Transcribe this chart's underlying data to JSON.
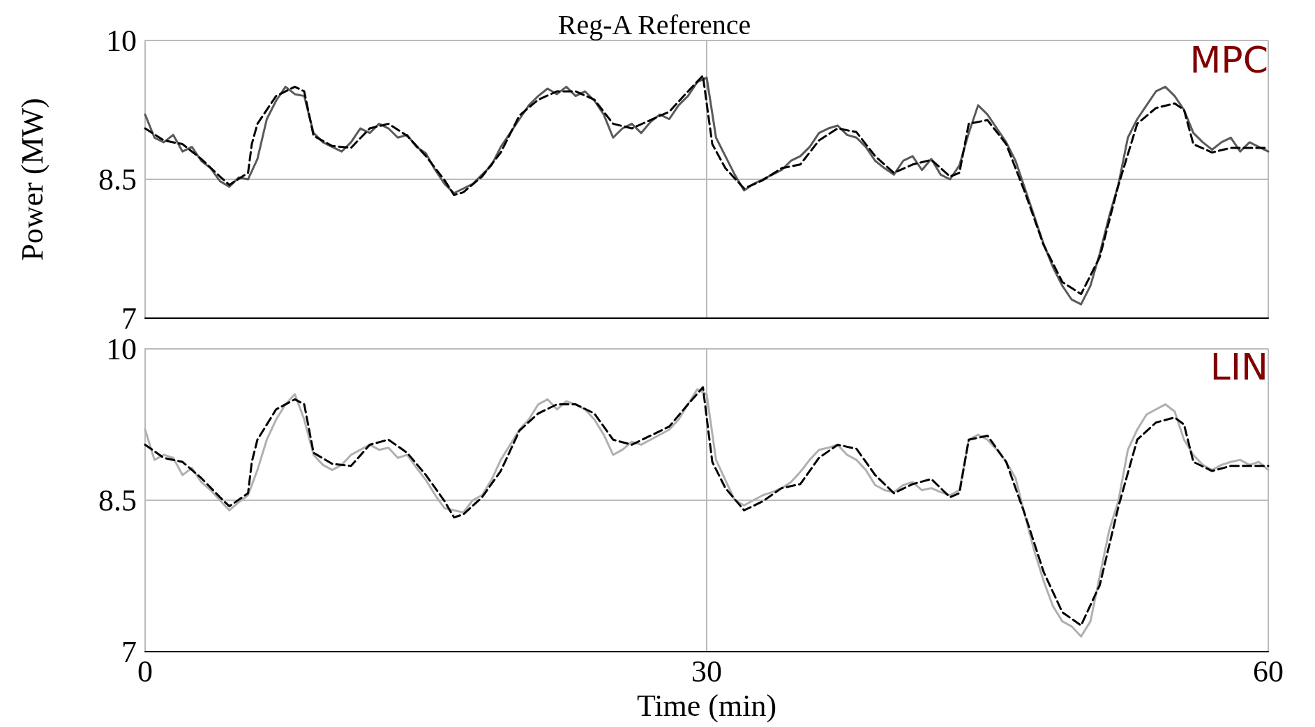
{
  "chart_data": [
    {
      "type": "line",
      "title": "Reg-A Reference",
      "ylabel": "Power (MW)",
      "annotations": [
        "MPC"
      ],
      "xlim": [
        0,
        60
      ],
      "xticks": [
        0,
        30,
        60
      ],
      "ylim": [
        7,
        10
      ],
      "yticks": [
        7,
        8.5,
        10
      ],
      "grid": true,
      "tick_labels": "y",
      "marker": "none",
      "series": [
        {
          "color": "#5a5a5a",
          "line_style": "solid",
          "x": [
            0,
            0.5,
            1,
            1.5,
            2,
            2.5,
            3,
            3.5,
            4,
            4.5,
            5,
            5.5,
            6,
            6.5,
            7,
            7.5,
            8,
            8.5,
            9,
            9.5,
            10,
            10.5,
            11,
            11.5,
            12,
            12.5,
            13,
            13.5,
            14,
            14.5,
            15,
            15.5,
            16,
            16.5,
            17,
            17.5,
            18,
            18.5,
            19,
            19.5,
            20,
            20.5,
            21,
            21.5,
            22,
            22.5,
            23,
            23.5,
            24,
            24.5,
            25,
            25.5,
            26,
            26.5,
            27,
            27.5,
            28,
            28.5,
            29,
            29.5,
            30,
            30.5,
            31,
            31.5,
            32,
            32.5,
            33,
            33.5,
            34,
            34.5,
            35,
            35.5,
            36,
            36.5,
            37,
            37.5,
            38,
            38.5,
            39,
            39.5,
            40,
            40.5,
            41,
            41.5,
            42,
            42.5,
            43,
            43.5,
            44,
            44.5,
            45,
            45.5,
            46,
            46.5,
            47,
            47.5,
            48,
            48.5,
            49,
            49.5,
            50,
            50.5,
            51,
            51.5,
            52,
            52.5,
            53,
            53.5,
            54,
            54.5,
            55,
            55.5,
            56,
            56.5,
            57,
            57.5,
            58,
            58.5,
            59,
            59.5,
            60
          ],
          "values": [
            9.2,
            8.95,
            8.9,
            8.98,
            8.8,
            8.85,
            8.7,
            8.62,
            8.48,
            8.42,
            8.52,
            8.5,
            8.72,
            9.15,
            9.35,
            9.5,
            9.42,
            9.4,
            9.0,
            8.9,
            8.85,
            8.8,
            8.9,
            9.05,
            9.0,
            9.1,
            9.05,
            8.95,
            8.98,
            8.85,
            8.78,
            8.6,
            8.45,
            8.35,
            8.4,
            8.45,
            8.55,
            8.65,
            8.85,
            9.0,
            9.15,
            9.3,
            9.4,
            9.48,
            9.42,
            9.5,
            9.4,
            9.45,
            9.35,
            9.2,
            8.95,
            9.05,
            9.1,
            9.0,
            9.12,
            9.2,
            9.15,
            9.3,
            9.4,
            9.55,
            9.6,
            8.95,
            8.75,
            8.55,
            8.38,
            8.45,
            8.5,
            8.55,
            8.6,
            8.7,
            8.75,
            8.85,
            9.0,
            9.05,
            9.08,
            8.98,
            8.95,
            8.85,
            8.7,
            8.62,
            8.55,
            8.7,
            8.75,
            8.6,
            8.72,
            8.55,
            8.5,
            8.65,
            9.0,
            9.3,
            9.2,
            9.05,
            8.9,
            8.7,
            8.4,
            8.1,
            7.8,
            7.55,
            7.35,
            7.2,
            7.15,
            7.35,
            7.7,
            8.1,
            8.45,
            8.95,
            9.15,
            9.3,
            9.45,
            9.5,
            9.4,
            9.25,
            9.0,
            8.9,
            8.82,
            8.9,
            8.95,
            8.8,
            8.9,
            8.85,
            8.8
          ]
        },
        {
          "color": "#000000",
          "line_style": "dashed",
          "x": [
            0,
            1,
            2,
            3,
            4,
            4.5,
            5.5,
            5.7,
            6,
            7,
            8,
            8.5,
            9,
            10,
            11,
            12,
            13,
            14,
            15,
            16,
            16.5,
            17,
            18,
            19,
            20,
            21,
            22,
            23,
            24,
            25,
            26,
            27,
            28,
            29,
            29.8,
            30,
            30.3,
            31,
            32,
            33,
            34,
            35,
            36,
            37,
            38,
            39,
            40,
            41,
            42,
            43,
            43.5,
            44,
            45,
            46,
            47,
            48,
            49,
            50,
            51,
            52,
            53,
            54,
            55,
            55.5,
            56,
            57,
            58,
            59,
            60
          ],
          "values": [
            9.05,
            8.92,
            8.88,
            8.72,
            8.53,
            8.44,
            8.57,
            8.88,
            9.1,
            9.4,
            9.5,
            9.45,
            8.97,
            8.86,
            8.84,
            9.05,
            9.1,
            8.97,
            8.75,
            8.49,
            8.33,
            8.36,
            8.53,
            8.79,
            9.19,
            9.36,
            9.45,
            9.45,
            9.36,
            9.1,
            9.05,
            9.14,
            9.23,
            9.45,
            9.62,
            9.32,
            8.88,
            8.62,
            8.4,
            8.49,
            8.62,
            8.66,
            8.92,
            9.05,
            9.01,
            8.75,
            8.57,
            8.66,
            8.71,
            8.53,
            8.57,
            9.1,
            9.14,
            8.88,
            8.36,
            7.79,
            7.39,
            7.26,
            7.66,
            8.44,
            9.1,
            9.27,
            9.32,
            9.25,
            8.88,
            8.79,
            8.84,
            8.84,
            8.84
          ]
        }
      ]
    },
    {
      "type": "line",
      "xlabel": "Time (min)",
      "annotations": [
        "LIN"
      ],
      "xlim": [
        0,
        60
      ],
      "xticks": [
        0,
        30,
        60
      ],
      "ylim": [
        7,
        10
      ],
      "yticks": [
        7,
        8.5,
        10
      ],
      "grid": true,
      "marker": "none",
      "series": [
        {
          "color": "#b0b0b0",
          "line_style": "solid",
          "x": [
            0,
            0.5,
            1,
            1.5,
            2,
            2.5,
            3,
            3.5,
            4,
            4.5,
            5,
            5.5,
            6,
            6.5,
            7,
            7.5,
            8,
            8.5,
            9,
            9.5,
            10,
            10.5,
            11,
            11.5,
            12,
            12.5,
            13,
            13.5,
            14,
            14.5,
            15,
            15.5,
            16,
            16.5,
            17,
            17.5,
            18,
            18.5,
            19,
            19.5,
            20,
            20.5,
            21,
            21.5,
            22,
            22.5,
            23,
            23.5,
            24,
            24.5,
            25,
            25.5,
            26,
            26.5,
            27,
            27.5,
            28,
            28.5,
            29,
            29.5,
            30,
            30.5,
            31,
            31.5,
            32,
            32.5,
            33,
            33.5,
            34,
            34.5,
            35,
            35.5,
            36,
            36.5,
            37,
            37.5,
            38,
            38.5,
            39,
            39.5,
            40,
            40.5,
            41,
            41.5,
            42,
            42.5,
            43,
            43.5,
            44,
            44.5,
            45,
            45.5,
            46,
            46.5,
            47,
            47.5,
            48,
            48.5,
            49,
            49.5,
            50,
            50.5,
            51,
            51.5,
            52,
            52.5,
            53,
            53.5,
            54,
            54.5,
            55,
            55.5,
            56,
            56.5,
            57,
            57.5,
            58,
            58.5,
            59,
            59.5,
            60
          ],
          "values": [
            9.2,
            8.9,
            8.95,
            8.92,
            8.75,
            8.82,
            8.68,
            8.6,
            8.5,
            8.4,
            8.48,
            8.55,
            8.8,
            9.1,
            9.3,
            9.45,
            9.55,
            9.3,
            8.95,
            8.85,
            8.8,
            8.85,
            8.95,
            9.0,
            9.05,
            9.0,
            9.02,
            8.92,
            8.95,
            8.82,
            8.7,
            8.55,
            8.42,
            8.4,
            8.38,
            8.5,
            8.55,
            8.7,
            8.9,
            9.05,
            9.2,
            9.3,
            9.45,
            9.5,
            9.4,
            9.48,
            9.45,
            9.4,
            9.3,
            9.15,
            8.95,
            9.0,
            9.08,
            9.05,
            9.1,
            9.15,
            9.2,
            9.3,
            9.45,
            9.6,
            9.55,
            8.9,
            8.7,
            8.5,
            8.45,
            8.5,
            8.55,
            8.58,
            8.62,
            8.68,
            8.78,
            8.9,
            9.0,
            9.02,
            9.05,
            8.95,
            8.9,
            8.8,
            8.65,
            8.6,
            8.58,
            8.65,
            8.68,
            8.6,
            8.62,
            8.58,
            8.55,
            8.6,
            9.1,
            9.15,
            9.1,
            9.0,
            8.88,
            8.72,
            8.35,
            8.0,
            7.7,
            7.45,
            7.3,
            7.25,
            7.15,
            7.3,
            7.75,
            8.2,
            8.5,
            9.0,
            9.2,
            9.35,
            9.4,
            9.45,
            9.38,
            9.1,
            8.95,
            8.85,
            8.8,
            8.85,
            8.88,
            8.9,
            8.85,
            8.88,
            8.8
          ]
        },
        {
          "color": "#000000",
          "line_style": "dashed",
          "x": [
            0,
            1,
            2,
            3,
            4,
            4.5,
            5.5,
            5.7,
            6,
            7,
            8,
            8.5,
            9,
            10,
            11,
            12,
            13,
            14,
            15,
            16,
            16.5,
            17,
            18,
            19,
            20,
            21,
            22,
            23,
            24,
            25,
            26,
            27,
            28,
            29,
            29.8,
            30,
            30.3,
            31,
            32,
            33,
            34,
            35,
            36,
            37,
            38,
            39,
            40,
            41,
            42,
            43,
            43.5,
            44,
            45,
            46,
            47,
            48,
            49,
            50,
            51,
            52,
            53,
            54,
            55,
            55.5,
            56,
            57,
            58,
            59,
            60
          ],
          "values": [
            9.05,
            8.92,
            8.88,
            8.72,
            8.53,
            8.44,
            8.57,
            8.88,
            9.1,
            9.4,
            9.5,
            9.45,
            8.97,
            8.86,
            8.84,
            9.05,
            9.1,
            8.97,
            8.75,
            8.49,
            8.33,
            8.36,
            8.53,
            8.79,
            9.19,
            9.36,
            9.45,
            9.45,
            9.36,
            9.1,
            9.05,
            9.14,
            9.23,
            9.45,
            9.62,
            9.32,
            8.88,
            8.62,
            8.4,
            8.49,
            8.62,
            8.66,
            8.92,
            9.05,
            9.01,
            8.75,
            8.57,
            8.66,
            8.71,
            8.53,
            8.57,
            9.1,
            9.14,
            8.88,
            8.36,
            7.79,
            7.39,
            7.26,
            7.66,
            8.44,
            9.1,
            9.27,
            9.32,
            9.25,
            8.88,
            8.79,
            8.84,
            8.84,
            8.84
          ]
        }
      ]
    }
  ]
}
